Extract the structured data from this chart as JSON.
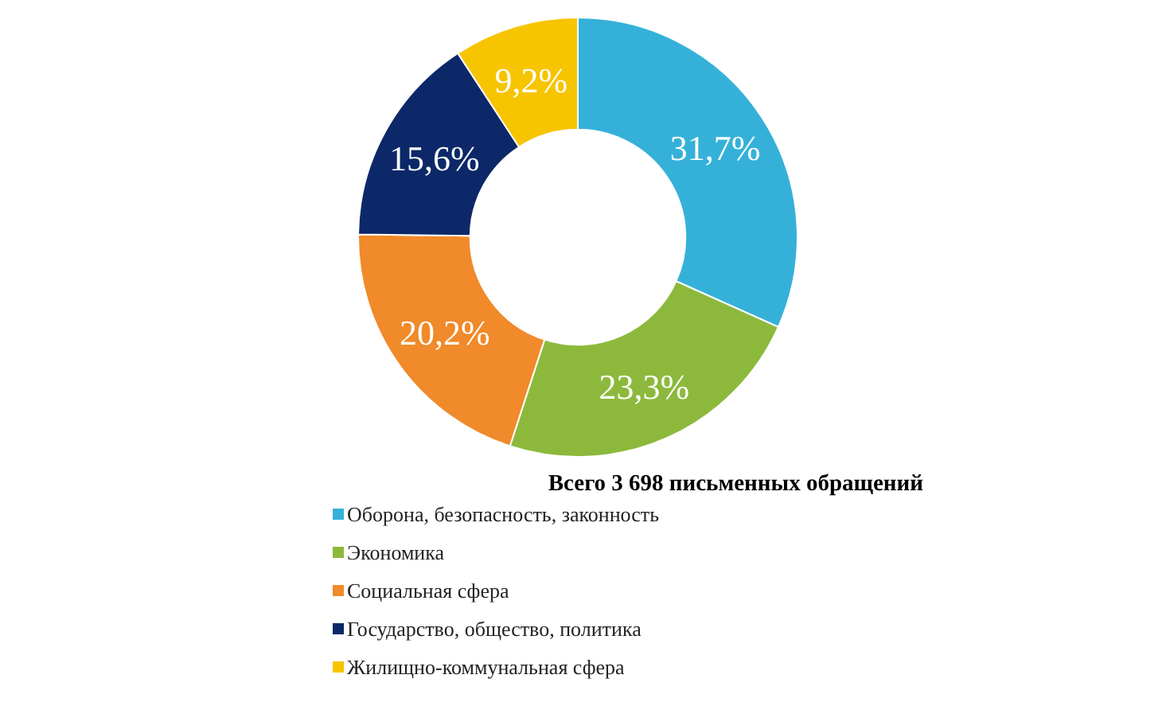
{
  "chart_data": {
    "type": "donut",
    "title": "Всего 3 698 письменных обращений",
    "categories": [
      "Оборона, безопасность, законность",
      "Экономика",
      "Социальная сфера",
      "Государство, общество, политика",
      "Жилищно-коммунальная сфера"
    ],
    "values": [
      31.7,
      23.3,
      20.2,
      15.6,
      9.2
    ],
    "colors": [
      "#35b1d9",
      "#8cb93c",
      "#f08a2a",
      "#0c2868",
      "#f7c400"
    ],
    "value_labels": [
      "31,7%",
      "23,3%",
      "20,2%",
      "15,6%",
      "9,2%"
    ],
    "legend": "bottom"
  }
}
